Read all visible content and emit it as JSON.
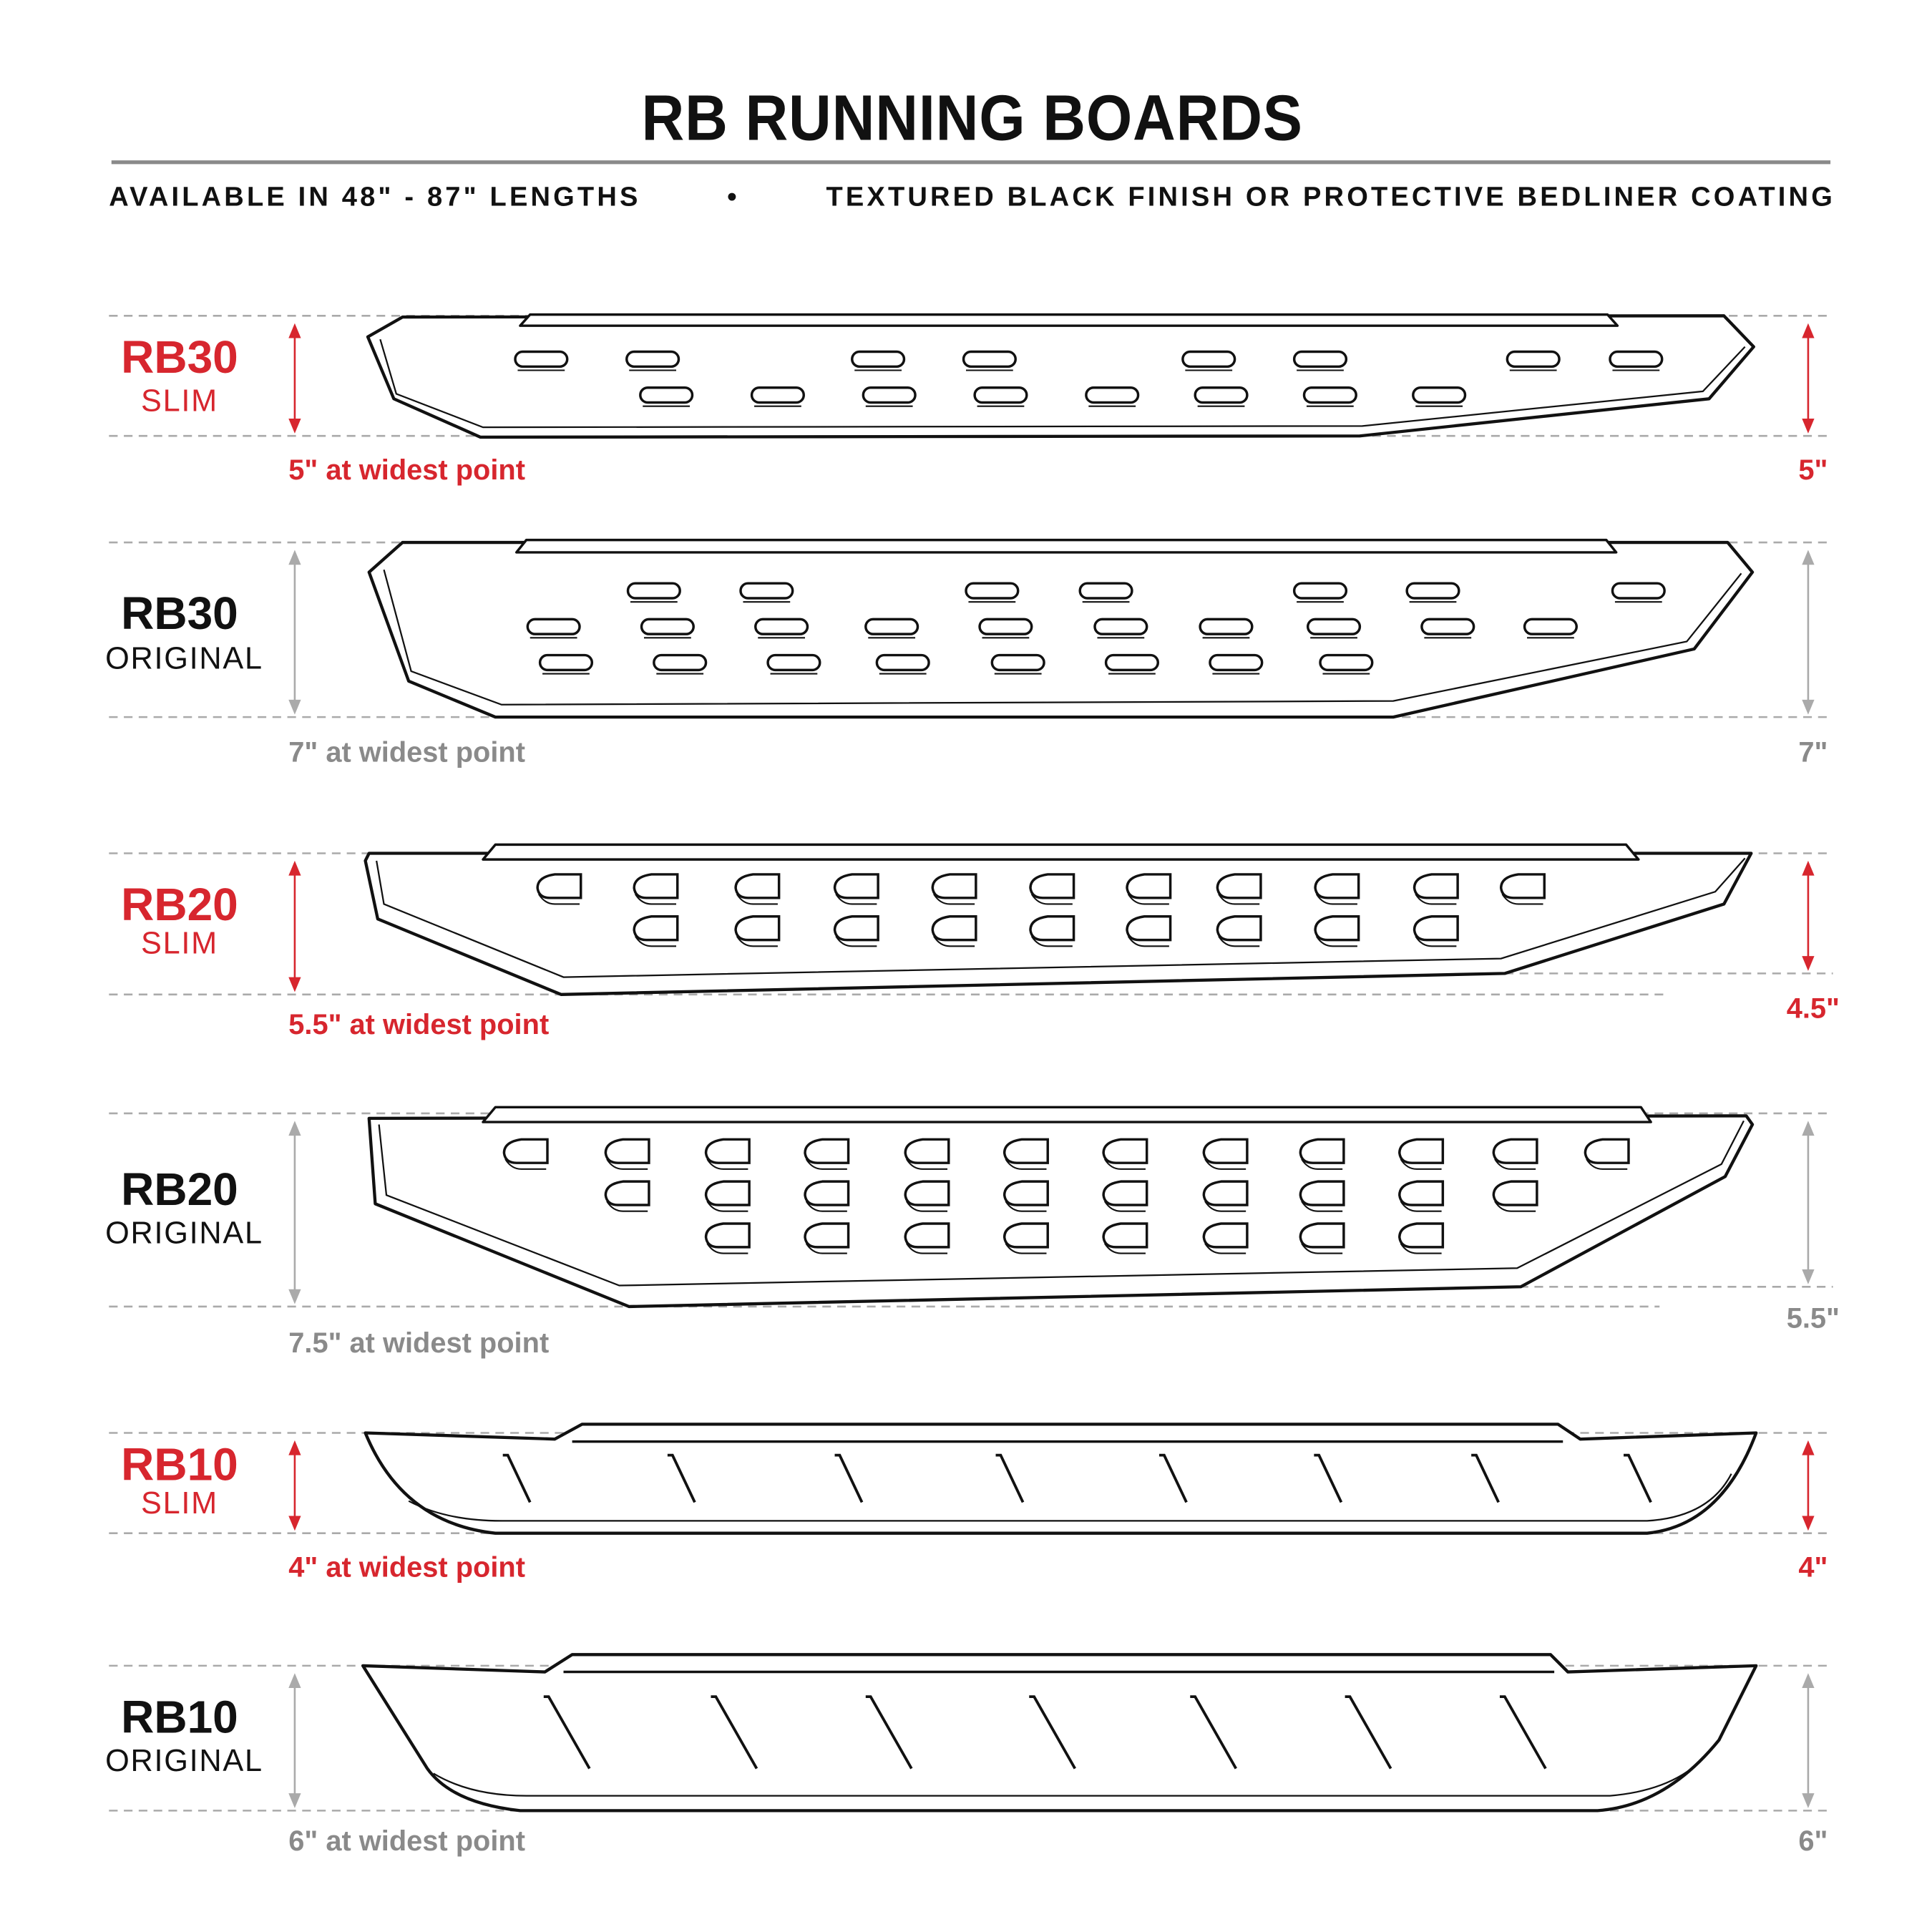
{
  "title": "RB RUNNING BOARDS",
  "subtitle": {
    "lengths": "AVAILABLE IN 48\" - 87\" LENGTHS",
    "separator": "•",
    "finish": "TEXTURED BLACK FINISH OR PROTECTIVE BEDLINER COATING"
  },
  "colors": {
    "accent": "#d7262e",
    "muted": "#8a8a8a",
    "ink": "#111111"
  },
  "products": [
    {
      "model": "RB30",
      "variant": "SLIM",
      "widest": "5\" at widest point",
      "end": "5\"",
      "highlight": true
    },
    {
      "model": "RB30",
      "variant": "ORIGINAL",
      "widest": "7\" at widest point",
      "end": "7\"",
      "highlight": false
    },
    {
      "model": "RB20",
      "variant": "SLIM",
      "widest": "5.5\" at widest point",
      "end": "4.5\"",
      "highlight": true
    },
    {
      "model": "RB20",
      "variant": "ORIGINAL",
      "widest": "7.5\" at widest point",
      "end": "5.5\"",
      "highlight": false
    },
    {
      "model": "RB10",
      "variant": "SLIM",
      "widest": "4\" at widest point",
      "end": "4\"",
      "highlight": true
    },
    {
      "model": "RB10",
      "variant": "ORIGINAL",
      "widest": "6\" at widest point",
      "end": "6\"",
      "highlight": false
    }
  ]
}
